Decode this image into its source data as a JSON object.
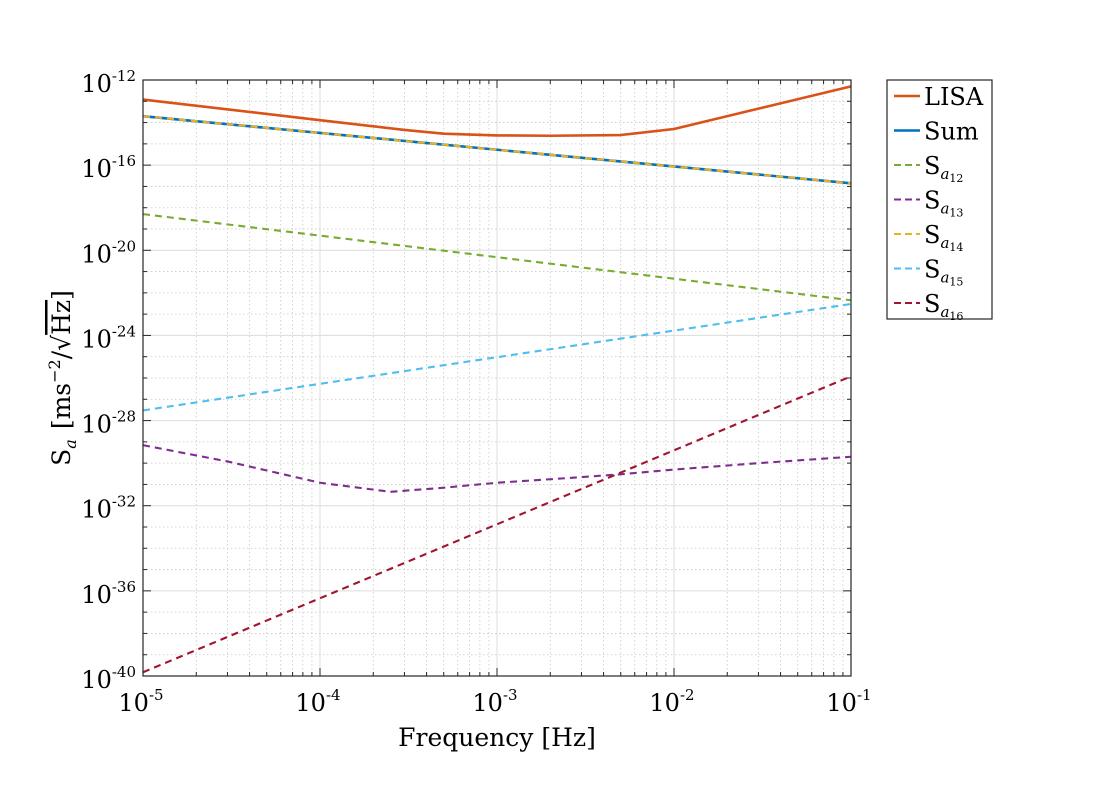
{
  "chart_data": {
    "type": "line",
    "xscale": "log",
    "yscale": "log",
    "xlim": [
      1e-05,
      0.1
    ],
    "ylim": [
      1e-40,
      1e-12
    ],
    "xlabel": "Frequency [Hz]",
    "ylabel": "S_a [ms^-2/√Hz]",
    "ylabel_parts": {
      "s": "S",
      "sub": "a",
      "unit_open": "[ms",
      "unit_exp": "−2",
      "unit_slash": "/",
      "sqrt": "√",
      "unit_hz": "Hz",
      "unit_close": "]"
    },
    "grid": true,
    "minor_grid": true,
    "legend_position": "outside-top-right",
    "x_ticks": [
      {
        "base": "10",
        "exp": "-5",
        "value": 1e-05
      },
      {
        "base": "10",
        "exp": "-4",
        "value": 0.0001
      },
      {
        "base": "10",
        "exp": "-3",
        "value": 0.001
      },
      {
        "base": "10",
        "exp": "-2",
        "value": 0.01
      },
      {
        "base": "10",
        "exp": "-1",
        "value": 0.1
      }
    ],
    "y_ticks": [
      {
        "base": "10",
        "exp": "-12",
        "value": 1e-12
      },
      {
        "base": "10",
        "exp": "-16",
        "value": 1e-16
      },
      {
        "base": "10",
        "exp": "-20",
        "value": 1e-20
      },
      {
        "base": "10",
        "exp": "-24",
        "value": 1e-24
      },
      {
        "base": "10",
        "exp": "-28",
        "value": 1e-28
      },
      {
        "base": "10",
        "exp": "-32",
        "value": 1e-32
      },
      {
        "base": "10",
        "exp": "-36",
        "value": 1e-36
      },
      {
        "base": "10",
        "exp": "-40",
        "value": 1e-40
      }
    ],
    "series": [
      {
        "name": "LISA",
        "label_main": "LISA",
        "label_sub": "",
        "label_subsub": "",
        "color": "#D95319",
        "dash": "solid",
        "x": [
          1e-05,
          0.0001,
          0.0003,
          0.0005,
          0.001,
          0.002,
          0.005,
          0.01,
          0.03,
          0.1
        ],
        "y": [
          1.2e-13,
          1.3e-14,
          4.5e-15,
          3e-15,
          2.5e-15,
          2.4e-15,
          2.6e-15,
          5e-15,
          4.5e-14,
          5e-13
        ]
      },
      {
        "name": "Sum",
        "label_main": "Sum",
        "label_sub": "",
        "label_subsub": "",
        "color": "#0072BD",
        "dash": "solid",
        "x": [
          1e-05,
          0.1
        ],
        "y": [
          2e-14,
          1.4e-17
        ]
      },
      {
        "name": "S_a12",
        "label_main": "S",
        "label_sub": "a",
        "label_subsub": "12",
        "color": "#77AC30",
        "dash": "dashed",
        "x": [
          1e-05,
          0.1
        ],
        "y": [
          5e-19,
          4.5e-23
        ]
      },
      {
        "name": "S_a13",
        "label_main": "S",
        "label_sub": "a",
        "label_subsub": "13",
        "color": "#7E2F8E",
        "dash": "dashed",
        "x": [
          1e-05,
          3e-05,
          0.0001,
          0.00025,
          0.0005,
          0.001,
          0.003,
          0.005,
          0.01,
          0.03,
          0.1
        ],
        "y": [
          7e-30,
          1.2e-30,
          1.2e-31,
          4.5e-32,
          7e-32,
          1.2e-31,
          2.2e-31,
          3e-31,
          5e-31,
          1e-30,
          2e-30
        ]
      },
      {
        "name": "S_a14",
        "label_main": "S",
        "label_sub": "a",
        "label_subsub": "14",
        "color": "#EDB120",
        "dash": "dashed",
        "x": [
          1e-05,
          0.1
        ],
        "y": [
          2e-14,
          1.4e-17
        ]
      },
      {
        "name": "S_a15",
        "label_main": "S",
        "label_sub": "a",
        "label_subsub": "15",
        "color": "#4DBEEE",
        "dash": "dashed",
        "x": [
          1e-05,
          0.1
        ],
        "y": [
          3e-28,
          3e-23
        ]
      },
      {
        "name": "S_a16",
        "label_main": "S",
        "label_sub": "a",
        "label_subsub": "16",
        "color": "#A2142F",
        "dash": "dashed",
        "x": [
          1e-05,
          0.1
        ],
        "y": [
          1.5e-40,
          1.2e-26
        ]
      }
    ]
  }
}
